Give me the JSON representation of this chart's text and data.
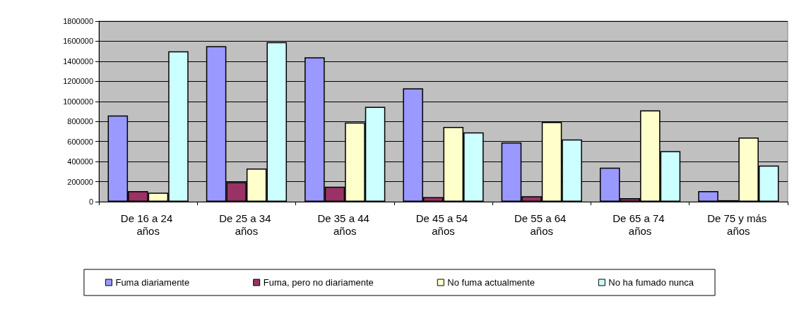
{
  "chart_data": {
    "type": "bar",
    "categories": [
      "De 16 a 24 años",
      "De 25 a 34 años",
      "De 35 a 44 años",
      "De 45 a 54 años",
      "De 55 a 64 años",
      "De 65 a 74 años",
      "De 75 y más años"
    ],
    "series": [
      {
        "name": "Fuma diariamente",
        "color": "#9999ff",
        "values": [
          860000,
          1550000,
          1440000,
          1130000,
          590000,
          340000,
          105000
        ]
      },
      {
        "name": "Fuma, pero no diariamente",
        "color": "#993366",
        "values": [
          105000,
          195000,
          150000,
          45000,
          55000,
          35000,
          15000
        ]
      },
      {
        "name": "No fuma actualmente",
        "color": "#ffffcc",
        "values": [
          90000,
          330000,
          790000,
          745000,
          795000,
          910000,
          640000
        ]
      },
      {
        "name": "No ha fumado nunca",
        "color": "#ccffff",
        "values": [
          1500000,
          1590000,
          945000,
          690000,
          620000,
          505000,
          360000
        ]
      }
    ],
    "ylim": [
      0,
      1800000
    ],
    "yticks": [
      0,
      200000,
      400000,
      600000,
      800000,
      1000000,
      1200000,
      1400000,
      1600000,
      1800000
    ],
    "grid": "y",
    "legend": "bottom"
  }
}
